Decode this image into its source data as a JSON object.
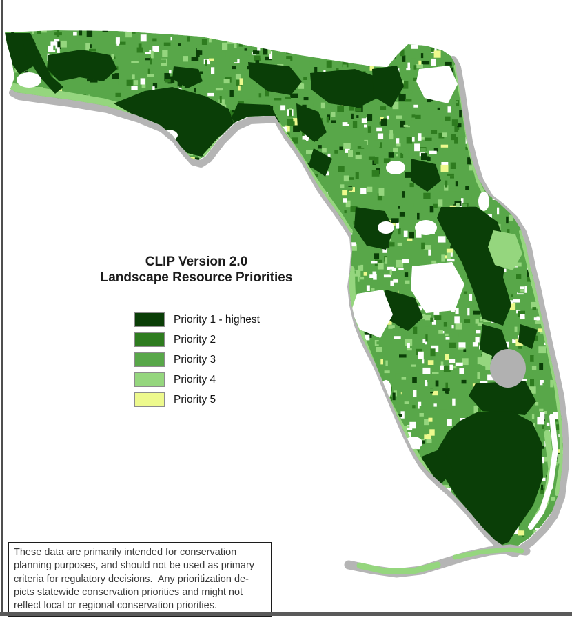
{
  "title": {
    "line1": "CLIP Version 2.0",
    "line2": "Landscape Resource Priorities"
  },
  "legend": {
    "items": [
      {
        "label": "Priority 1 - highest",
        "color": "#0a3e07"
      },
      {
        "label": "Priority 2",
        "color": "#2e7c1f"
      },
      {
        "label": "Priority 3",
        "color": "#58a749"
      },
      {
        "label": "Priority 4",
        "color": "#95d67e"
      },
      {
        "label": "Priority 5",
        "color": "#edf98d"
      }
    ],
    "swatch_border_color": "#8c8c8c"
  },
  "disclaimer": {
    "lines": [
      "These data are primarily intended for conservation",
      "planning purposes, and should not be used as primary",
      "criteria for regulatory decisions.  Any prioritization de-",
      "picts statewide conservation priorities and might not",
      "reflect local or regional conservation priorities."
    ]
  },
  "map": {
    "region": "Florida",
    "coast_shadow_color": "#b5b5b5",
    "lake_color": "#b1b1b1",
    "land_base_color": "#58a749",
    "background_color": "#ffffff"
  }
}
